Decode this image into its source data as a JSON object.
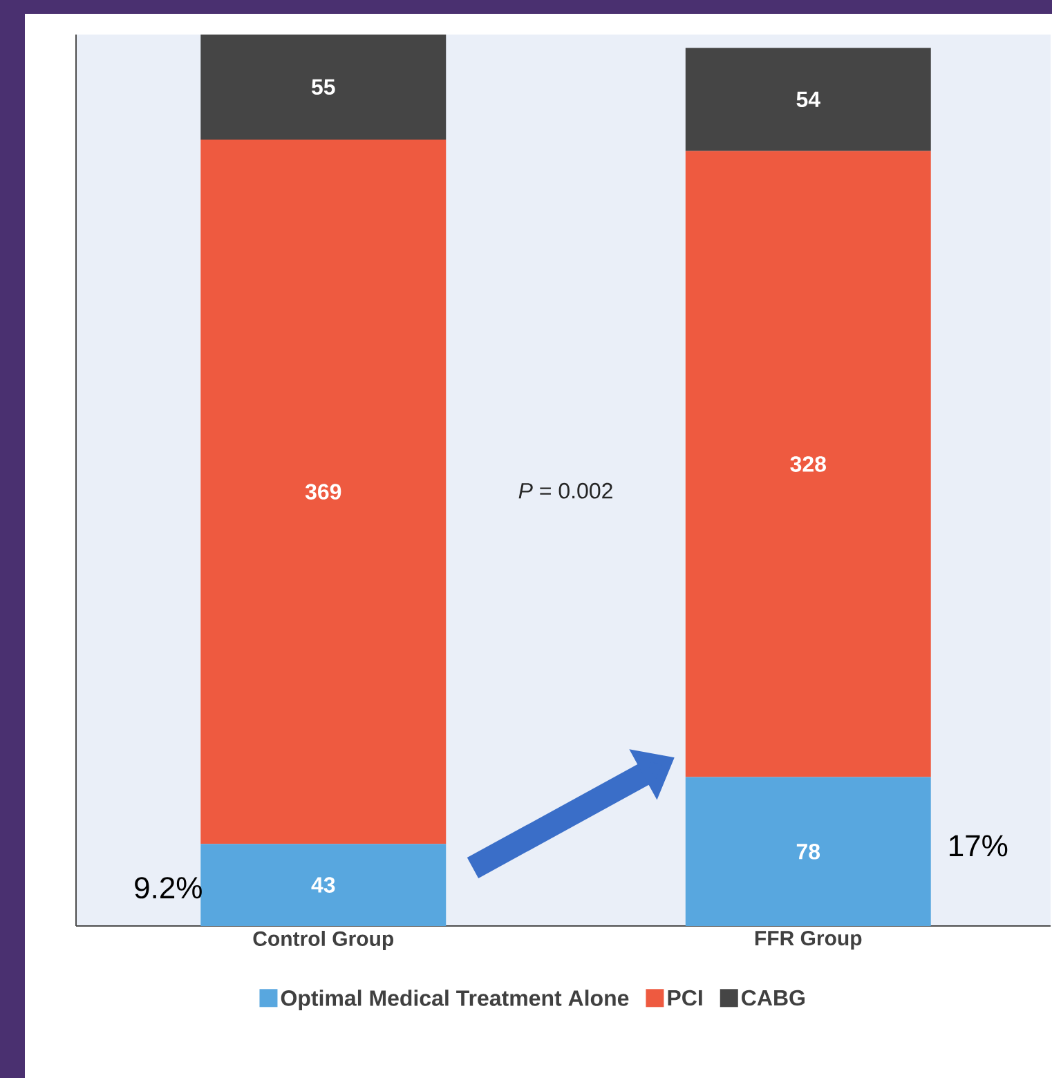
{
  "chart_data": {
    "type": "bar",
    "stacked": true,
    "data_labels": true,
    "legend": "bottom",
    "categories": [
      "Control Group",
      "FFR Group"
    ],
    "series": [
      {
        "name": "Optimal Medical Treatment Alone",
        "color": "#58a7df",
        "values": [
          43,
          78
        ]
      },
      {
        "name": "PCI",
        "color": "#ee5a40",
        "values": [
          369,
          328
        ]
      },
      {
        "name": "CABG",
        "color": "#454545",
        "values": [
          55,
          54
        ]
      }
    ],
    "annotations": [
      "*P* = 0.002",
      "9.2%",
      "17%"
    ]
  }
}
